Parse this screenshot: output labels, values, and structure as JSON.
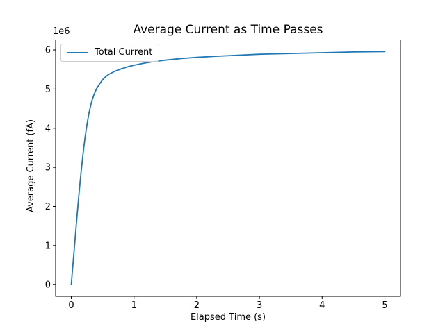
{
  "chart_data": {
    "type": "line",
    "title": "Average Current as Time Passes",
    "xlabel": "Elapsed Time (s)",
    "ylabel": "Average Current (fA)",
    "y_offset_text": "1e6",
    "legend_position": "upper left",
    "grid": false,
    "background_color": "#ffffff",
    "text_color": "#000000",
    "legend_border_color": "#cccccc",
    "x_ticks": [
      0,
      1,
      2,
      3,
      4,
      5
    ],
    "y_ticks": [
      0,
      1000000,
      2000000,
      3000000,
      4000000,
      5000000,
      6000000
    ],
    "y_tick_labels": [
      "0",
      "1",
      "2",
      "3",
      "4",
      "5",
      "6"
    ],
    "xlim": [
      -0.25,
      5.25
    ],
    "ylim": [
      -298000,
      6258000
    ],
    "series": [
      {
        "name": "Total Current",
        "color": "#1f77b4",
        "x": [
          0,
          0.02,
          0.04,
          0.06,
          0.08,
          0.1,
          0.12,
          0.14,
          0.16,
          0.18,
          0.2,
          0.22,
          0.24,
          0.26,
          0.28,
          0.3,
          0.33,
          0.36,
          0.4,
          0.45,
          0.5,
          0.55,
          0.6,
          0.7,
          0.8,
          0.9,
          1.0,
          1.15,
          1.3,
          1.5,
          1.75,
          2.0,
          2.3,
          2.6,
          3.0,
          3.5,
          4.0,
          4.5,
          5.0
        ],
        "y": [
          0,
          390000,
          780000,
          1170000,
          1550000,
          1920000,
          2280000,
          2620000,
          2940000,
          3240000,
          3520000,
          3770000,
          3990000,
          4190000,
          4370000,
          4520000,
          4710000,
          4850000,
          5000000,
          5130000,
          5240000,
          5320000,
          5380000,
          5460000,
          5520000,
          5570000,
          5610000,
          5660000,
          5700000,
          5740000,
          5780000,
          5810000,
          5840000,
          5860000,
          5890000,
          5910000,
          5930000,
          5950000,
          5960000
        ]
      }
    ]
  }
}
